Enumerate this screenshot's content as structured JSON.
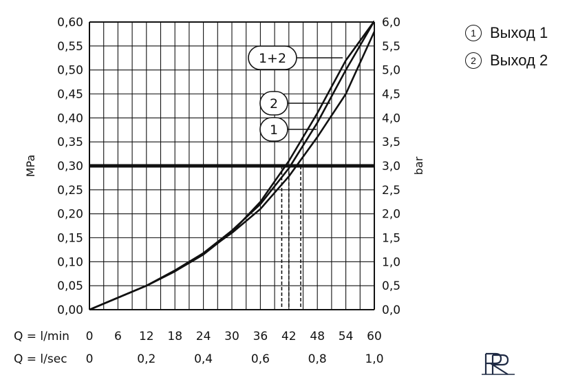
{
  "chart_data": {
    "type": "line",
    "ylabel_left": "MPa",
    "ylabel_right": "bar",
    "xlabel_lmin": "Q = l/min",
    "xlabel_lsec": "Q = l/sec",
    "xlim": [
      0,
      60
    ],
    "ylim": [
      0,
      0.6
    ],
    "grid": true,
    "x_ticks": [
      "0",
      "6",
      "12",
      "18",
      "24",
      "30",
      "36",
      "42",
      "48",
      "54",
      "60"
    ],
    "x_ticks_lsec": [
      "0",
      "0,2",
      "0,4",
      "0,6",
      "0,8",
      "1,0"
    ],
    "y_ticks_left": [
      "0,00",
      "0,05",
      "0,10",
      "0,15",
      "0,20",
      "0,25",
      "0,30",
      "0,35",
      "0,40",
      "0,45",
      "0,50",
      "0,55",
      "0,60"
    ],
    "y_ticks_right": [
      "0,0",
      "0,5",
      "1,0",
      "1,5",
      "2,0",
      "2,5",
      "3,0",
      "3,5",
      "4,0",
      "4,5",
      "5,0",
      "5,5",
      "6,0"
    ],
    "reference_line": {
      "y": 0.3
    },
    "series": [
      {
        "name": "1",
        "x": [
          0,
          6,
          12,
          18,
          24,
          30,
          36,
          42,
          48,
          54,
          60
        ],
        "y": [
          0,
          0.025,
          0.05,
          0.082,
          0.118,
          0.16,
          0.21,
          0.278,
          0.36,
          0.45,
          0.58
        ]
      },
      {
        "name": "2",
        "x": [
          0,
          6,
          12,
          18,
          24,
          30,
          36,
          42,
          48,
          54,
          60
        ],
        "y": [
          0,
          0.025,
          0.05,
          0.08,
          0.118,
          0.165,
          0.22,
          0.295,
          0.39,
          0.5,
          0.62
        ]
      },
      {
        "name": "1+2",
        "x": [
          0,
          6,
          12,
          18,
          24,
          30,
          36,
          42,
          48,
          54,
          60
        ],
        "y": [
          0,
          0.025,
          0.05,
          0.08,
          0.115,
          0.162,
          0.225,
          0.31,
          0.41,
          0.52,
          0.65
        ]
      }
    ],
    "flow_at_reference": [
      40.5,
      42,
      44.5
    ]
  },
  "legend": {
    "items": [
      {
        "marker": "1",
        "label": "Выход 1"
      },
      {
        "marker": "2",
        "label": "Выход 2"
      }
    ]
  },
  "logo": {
    "text": "PR"
  }
}
